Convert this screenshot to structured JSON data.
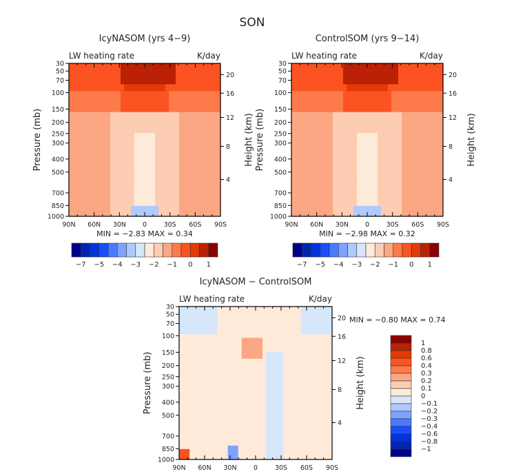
{
  "figure_title": "SON",
  "colors": {
    "full_palette": [
      "#00008b",
      "#0026b0",
      "#0034dc",
      "#1a4dff",
      "#4a7bff",
      "#7ea3ff",
      "#b0c9ff",
      "#d6e7fb",
      "#feead9",
      "#fdcdb3",
      "#fca784",
      "#fd7a4a",
      "#fc5322",
      "#e43a06",
      "#bb2104",
      "#8b0000"
    ],
    "diff_palette": [
      "#00008b",
      "#0026b0",
      "#0034dc",
      "#1a4dff",
      "#4a7bff",
      "#7ea3ff",
      "#b0c9ff",
      "#d6e7fb",
      "#feead9",
      "#fdcdb3",
      "#fca784",
      "#fd7a4a",
      "#fc5322",
      "#e43a06",
      "#bb2104",
      "#8b0000"
    ]
  },
  "chart_data": [
    {
      "type": "heatmap",
      "id": "icy",
      "title": "IcyNASOM (yrs 4−9)",
      "left_label": "LW heating rate",
      "right_label": "K/day",
      "xlabel": "",
      "ylabel": "Pressure (mb)",
      "y2label": "Height (km)",
      "x_ticks": [
        "90N",
        "60N",
        "30N",
        "0",
        "30S",
        "60S",
        "90S"
      ],
      "y_ticks": [
        "30",
        "50",
        "70",
        "100",
        "150",
        "200",
        "250",
        "300",
        "400",
        "500",
        "700",
        "850",
        "1000"
      ],
      "y2_ticks": [
        "20",
        "16",
        "12",
        "8",
        "4"
      ],
      "stats": {
        "min_label": "MIN =",
        "min": "−2.83",
        "max_label": "MAX =",
        "max": "0.34"
      },
      "colorbar": {
        "orientation": "horizontal",
        "labels": [
          "−7",
          "−5",
          "−4",
          "−3",
          "−2",
          "−1",
          "0",
          "1"
        ]
      }
    },
    {
      "type": "heatmap",
      "id": "control",
      "title": "ControlSOM (yrs 9−14)",
      "left_label": "LW heating rate",
      "right_label": "K/day",
      "xlabel": "",
      "ylabel": "Pressure (mb)",
      "y2label": "Height (km)",
      "x_ticks": [
        "90N",
        "60N",
        "30N",
        "0",
        "30S",
        "60S",
        "90S"
      ],
      "y_ticks": [
        "30",
        "50",
        "70",
        "100",
        "150",
        "200",
        "250",
        "300",
        "400",
        "500",
        "700",
        "850",
        "1000"
      ],
      "y2_ticks": [
        "20",
        "16",
        "12",
        "8",
        "4"
      ],
      "stats": {
        "min_label": "MIN =",
        "min": "−2.98",
        "max_label": "MAX =",
        "max": "0.32"
      },
      "colorbar": {
        "orientation": "horizontal",
        "labels": [
          "−7",
          "−5",
          "−4",
          "−3",
          "−2",
          "−1",
          "0",
          "1"
        ]
      }
    },
    {
      "type": "heatmap",
      "id": "diff",
      "title": "IcyNASOM − ControlSOM",
      "left_label": "LW heating rate",
      "right_label": "K/day",
      "xlabel": "",
      "ylabel": "Pressure (mb)",
      "y2label": "Height (km)",
      "x_ticks": [
        "90N",
        "60N",
        "30N",
        "0",
        "30S",
        "60S",
        "90S"
      ],
      "y_ticks": [
        "30",
        "50",
        "70",
        "100",
        "150",
        "200",
        "250",
        "300",
        "400",
        "500",
        "700",
        "850",
        "1000"
      ],
      "y2_ticks": [
        "20",
        "16",
        "12",
        "8",
        "4"
      ],
      "stats": {
        "min_label": "MIN =",
        "min": "−0.80",
        "max_label": "MAX =",
        "max": "0.74"
      },
      "colorbar": {
        "orientation": "vertical",
        "labels": [
          "1",
          "0.8",
          "0.6",
          "0.4",
          "0.3",
          "0.2",
          "0.1",
          "0",
          "−0.1",
          "−0.2",
          "−0.3",
          "−0.4",
          "−0.6",
          "−0.8",
          "−1"
        ]
      }
    }
  ]
}
